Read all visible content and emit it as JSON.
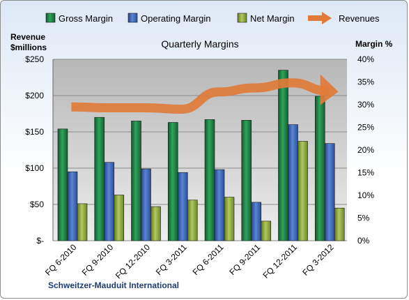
{
  "chart_data": {
    "type": "bar",
    "title": "Quarterly Margins",
    "company": "Schweitzer-Mauduit International",
    "ylabel_left": [
      "Revenue",
      "$millions"
    ],
    "ylabel_right": "Margin %",
    "categories": [
      "FQ 6-2010",
      "FQ 9-2010",
      "FQ 12-2010",
      "FQ 3-2011",
      "FQ 6-2011",
      "FQ 9-2011",
      "FQ 12-2011",
      "FQ 3-2012"
    ],
    "left_ticks": [
      "$-",
      "$50",
      "$100",
      "$150",
      "$200",
      "$250"
    ],
    "right_ticks": [
      "0%",
      "5%",
      "10%",
      "15%",
      "20%",
      "25%",
      "30%",
      "35%",
      "40%"
    ],
    "ylim_left": [
      0,
      250
    ],
    "ylim_right": [
      0,
      40
    ],
    "series": [
      {
        "name": "Gross Margin",
        "type": "bar",
        "axis": "left",
        "color": "#1e7b43",
        "values": [
          154,
          170,
          165,
          163,
          167,
          166,
          235,
          199
        ]
      },
      {
        "name": "Operating Margin",
        "type": "bar",
        "axis": "left",
        "color": "#3b63b3",
        "values": [
          95,
          108,
          99,
          94,
          98,
          53,
          160,
          134
        ]
      },
      {
        "name": "Net Margin",
        "type": "bar",
        "axis": "left",
        "color": "#8aa638",
        "values": [
          51,
          63,
          47,
          56,
          60,
          27,
          137,
          45
        ]
      },
      {
        "name": "Revenues",
        "type": "line",
        "axis": "right",
        "color": "#ed7d31",
        "values": [
          29.5,
          29.3,
          29.3,
          29.0,
          32.8,
          33.7,
          34.8,
          33.0
        ]
      }
    ],
    "grid": true,
    "legend_position": "top"
  }
}
